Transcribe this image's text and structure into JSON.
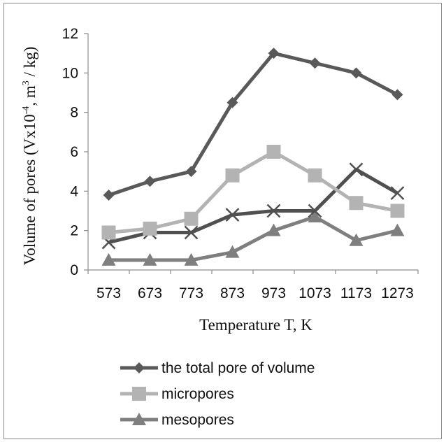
{
  "chart_data": {
    "type": "line",
    "xlabel": "Temperature T, K",
    "ylabel": {
      "text": "Volume of pores (Vx10",
      "exp1": "-4",
      "mid": ", m",
      "exp2": "3",
      "end": " / kg)"
    },
    "categories": [
      "573",
      "673",
      "773",
      "873",
      "973",
      "1073",
      "1173",
      "1273"
    ],
    "ylim": [
      0,
      12
    ],
    "yticks": [
      0,
      2,
      4,
      6,
      8,
      10,
      12
    ],
    "grid": false,
    "legend_position": "bottom",
    "series": [
      {
        "name": "the total pore of volume",
        "marker": "diamond",
        "color": "#595959",
        "values": [
          3.8,
          4.5,
          5.0,
          8.5,
          11.0,
          10.5,
          10.0,
          8.9
        ]
      },
      {
        "name": "micropores",
        "marker": "square",
        "color": "#b3b3b3",
        "values": [
          1.9,
          2.1,
          2.6,
          4.8,
          6.0,
          4.8,
          3.4,
          3.0
        ]
      },
      {
        "name": "mesopores",
        "marker": "triangle",
        "color": "#7f7f7f",
        "values": [
          0.5,
          0.5,
          0.5,
          0.9,
          2.0,
          2.7,
          1.5,
          2.0
        ]
      },
      {
        "marker": "x",
        "color": "#505050",
        "values": [
          1.4,
          1.9,
          1.9,
          2.8,
          3.0,
          3.0,
          5.1,
          3.9
        ]
      }
    ]
  }
}
